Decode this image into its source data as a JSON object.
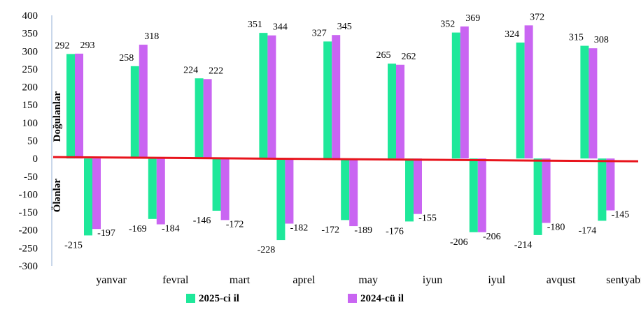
{
  "chart_data": {
    "type": "bar",
    "categories": [
      "yanvar",
      "fevral",
      "mart",
      "aprel",
      "may",
      "iyun",
      "iyul",
      "avqust",
      "sentyabr"
    ],
    "series": [
      {
        "name": "2025-ci il",
        "color": "#1ee89a",
        "positive": [
          292,
          258,
          224,
          351,
          327,
          265,
          352,
          324,
          315
        ],
        "negative": [
          -215,
          -169,
          -146,
          -228,
          -172,
          -176,
          -206,
          -214,
          -174
        ]
      },
      {
        "name": "2024-cü il",
        "color": "#c965f2",
        "positive": [
          293,
          318,
          222,
          344,
          345,
          262,
          369,
          372,
          308
        ],
        "negative": [
          -197,
          -184,
          -172,
          -182,
          -189,
          -155,
          -206,
          -180,
          -145
        ]
      }
    ],
    "positive_label": "Doğulanlar",
    "negative_label": "Ölənlər",
    "ylim": [
      -300,
      400
    ],
    "yticks": [
      "400",
      "350",
      "300",
      "250",
      "200",
      "150",
      "100",
      "50",
      "0",
      "-50",
      "-100",
      "-150",
      "-200",
      "-250",
      "-300"
    ],
    "zero_line_color": "#e8141c",
    "legend_position": "bottom",
    "grid": false
  }
}
